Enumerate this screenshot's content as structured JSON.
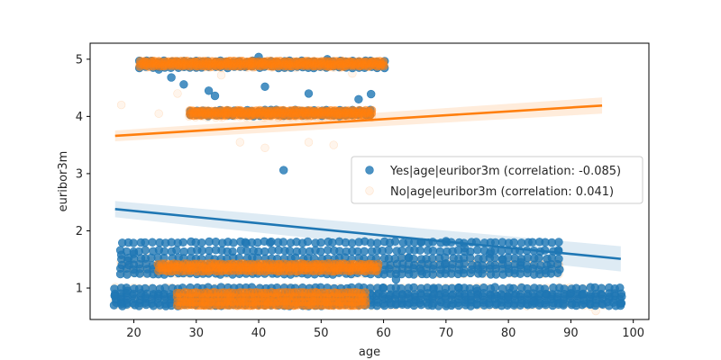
{
  "chart_data": {
    "type": "scatter",
    "title": "",
    "xlabel": "age",
    "ylabel": "euribor3m",
    "xlim": [
      13.0,
      102.5
    ],
    "ylim": [
      0.45,
      5.28
    ],
    "xticks": [
      20,
      30,
      40,
      50,
      60,
      70,
      80,
      90,
      100
    ],
    "yticks": [
      1,
      2,
      3,
      4,
      5
    ],
    "grid": false,
    "legend_position": "center-right",
    "series": [
      {
        "name": "Yes|age|euribor3m (correlation: -0.085)",
        "color": "#1f77b4",
        "alpha": 0.8,
        "bands": [
          {
            "x_range": [
              21,
              60
            ],
            "y_values": [
              4.96,
              4.86
            ]
          },
          {
            "x_range": [
              29,
              58
            ],
            "y_values": [
              4.1,
              4.02
            ]
          },
          {
            "x_range": [
              18,
              88
            ],
            "y_values": [
              1.8,
              1.65,
              1.52,
              1.41,
              1.33,
              1.25
            ]
          },
          {
            "x_range": [
              17,
              98
            ],
            "y_values": [
              1.0,
              0.9,
              0.86,
              0.8,
              0.74,
              0.7
            ]
          }
        ],
        "points": [
          [
            44,
            3.06
          ],
          [
            24,
            4.82
          ],
          [
            26,
            4.68
          ],
          [
            28,
            4.56
          ],
          [
            32,
            4.45
          ],
          [
            41,
            4.52
          ],
          [
            48,
            4.4
          ],
          [
            58,
            4.39
          ],
          [
            40,
            5.04
          ],
          [
            51,
            5.0
          ],
          [
            38,
            4.88
          ],
          [
            33,
            4.36
          ],
          [
            56,
            4.3
          ],
          [
            64,
            1.53
          ],
          [
            66,
            1.8
          ],
          [
            70,
            1.82
          ],
          [
            73,
            1.7
          ],
          [
            77,
            1.6
          ],
          [
            79,
            1.5
          ],
          [
            82,
            1.45
          ],
          [
            88,
            1.66
          ],
          [
            86,
            0.9
          ],
          [
            90,
            0.91
          ],
          [
            92,
            0.9
          ],
          [
            98,
            0.73
          ],
          [
            84,
            0.77
          ],
          [
            68,
            0.98
          ],
          [
            72,
            1.0
          ],
          [
            75,
            0.95
          ],
          [
            80,
            0.84
          ],
          [
            62,
            1.15
          ],
          [
            66,
            1.3
          ],
          [
            70,
            1.43
          ],
          [
            60,
            1.0
          ],
          [
            42,
            1.81
          ],
          [
            38,
            1.78
          ],
          [
            20,
            1.6
          ],
          [
            19,
            1.48
          ],
          [
            18,
            1.58
          ],
          [
            17,
            0.87
          ],
          [
            18,
            0.72
          ],
          [
            19,
            0.95
          ]
        ],
        "regression": {
          "x": [
            17,
            98
          ],
          "y": [
            2.38,
            1.51
          ]
        }
      },
      {
        "name": "No|age|euribor3m (correlation: 0.041)",
        "color": "#ff7f0e",
        "alpha": 0.08,
        "bands": [
          {
            "x_range": [
              21,
              60
            ],
            "y_values": [
              4.96,
              4.92,
              4.86
            ]
          },
          {
            "x_range": [
              29,
              58
            ],
            "y_values": [
              4.1,
              4.04,
              3.99
            ]
          },
          {
            "x_range": [
              18,
              88
            ],
            "y_values": [
              1.48,
              1.41,
              1.33,
              1.26
            ]
          },
          {
            "x_range": [
              17,
              95
            ],
            "y_values": [
              1.0,
              0.87,
              0.78,
              0.7
            ]
          }
        ],
        "points": [
          [
            18,
            4.2
          ],
          [
            24,
            4.05
          ],
          [
            27,
            4.4
          ],
          [
            37,
            3.55
          ],
          [
            41,
            3.45
          ],
          [
            48,
            3.55
          ],
          [
            52,
            3.5
          ],
          [
            34,
            4.72
          ],
          [
            55,
            4.75
          ],
          [
            22,
            1.65
          ],
          [
            63,
            1.55
          ],
          [
            67,
            1.45
          ],
          [
            75,
            1.4
          ],
          [
            85,
            0.72
          ],
          [
            89,
            0.72
          ],
          [
            94,
            0.6
          ],
          [
            76,
            0.75
          ],
          [
            82,
            1.02
          ],
          [
            88,
            1.4
          ]
        ],
        "regression": {
          "x": [
            17,
            95
          ],
          "y": [
            3.66,
            4.19
          ]
        }
      }
    ]
  }
}
